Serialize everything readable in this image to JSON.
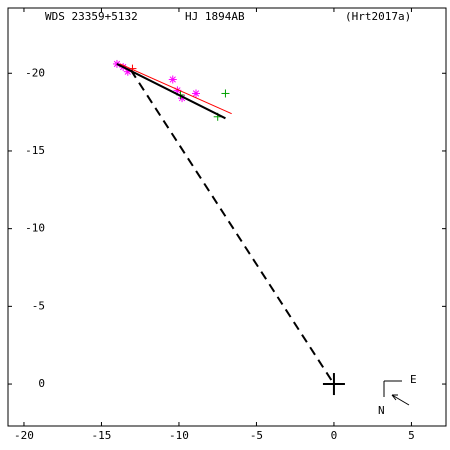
{
  "chart_data": {
    "type": "scatter",
    "title": "WDS 23359+5132",
    "subtitle": "HJ 1894AB",
    "reference": "(Hrt2017a)",
    "compass": {
      "east": "E",
      "north": "N"
    },
    "xlim": [
      -21.03,
      7.23
    ],
    "xticks": [
      -20,
      -15,
      -10,
      -5,
      0,
      5
    ],
    "ylim": [
      2.7,
      -24.2
    ],
    "yticks": [
      -20,
      -15,
      -10,
      -5,
      0
    ],
    "series": [
      {
        "marker": "star",
        "color": "#ff00ff",
        "x": [
          -14,
          -13.6,
          -13.3,
          -10.4,
          -10.1,
          -9.8,
          -8.9
        ],
        "values": [
          -20.6,
          -20.4,
          -20.1,
          -19.6,
          -18.9,
          -18.4,
          -18.7
        ]
      },
      {
        "marker": "plus",
        "color": "#00a000",
        "x": [
          -7,
          -7.5,
          -9.9
        ],
        "values": [
          -18.7,
          -17.2,
          -18.6
        ]
      },
      {
        "marker": "plus",
        "color": "#ff0000",
        "x": [
          -13
        ],
        "values": [
          -20.3
        ]
      },
      {
        "line": "solid",
        "color": "#000000",
        "x": [
          -14,
          -7
        ],
        "values": [
          -20.6,
          -17.1
        ]
      },
      {
        "line": "solid",
        "color": "#ff0000",
        "x": [
          -13.8,
          -6.6
        ],
        "values": [
          -20.6,
          -17.4
        ]
      },
      {
        "line": "dashed",
        "color": "#000000",
        "x": [
          -13.1,
          0
        ],
        "values": [
          -20.2,
          0
        ]
      },
      {
        "marker": "bigplus",
        "color": "#000000",
        "x": [
          0
        ],
        "values": [
          0
        ]
      }
    ]
  }
}
